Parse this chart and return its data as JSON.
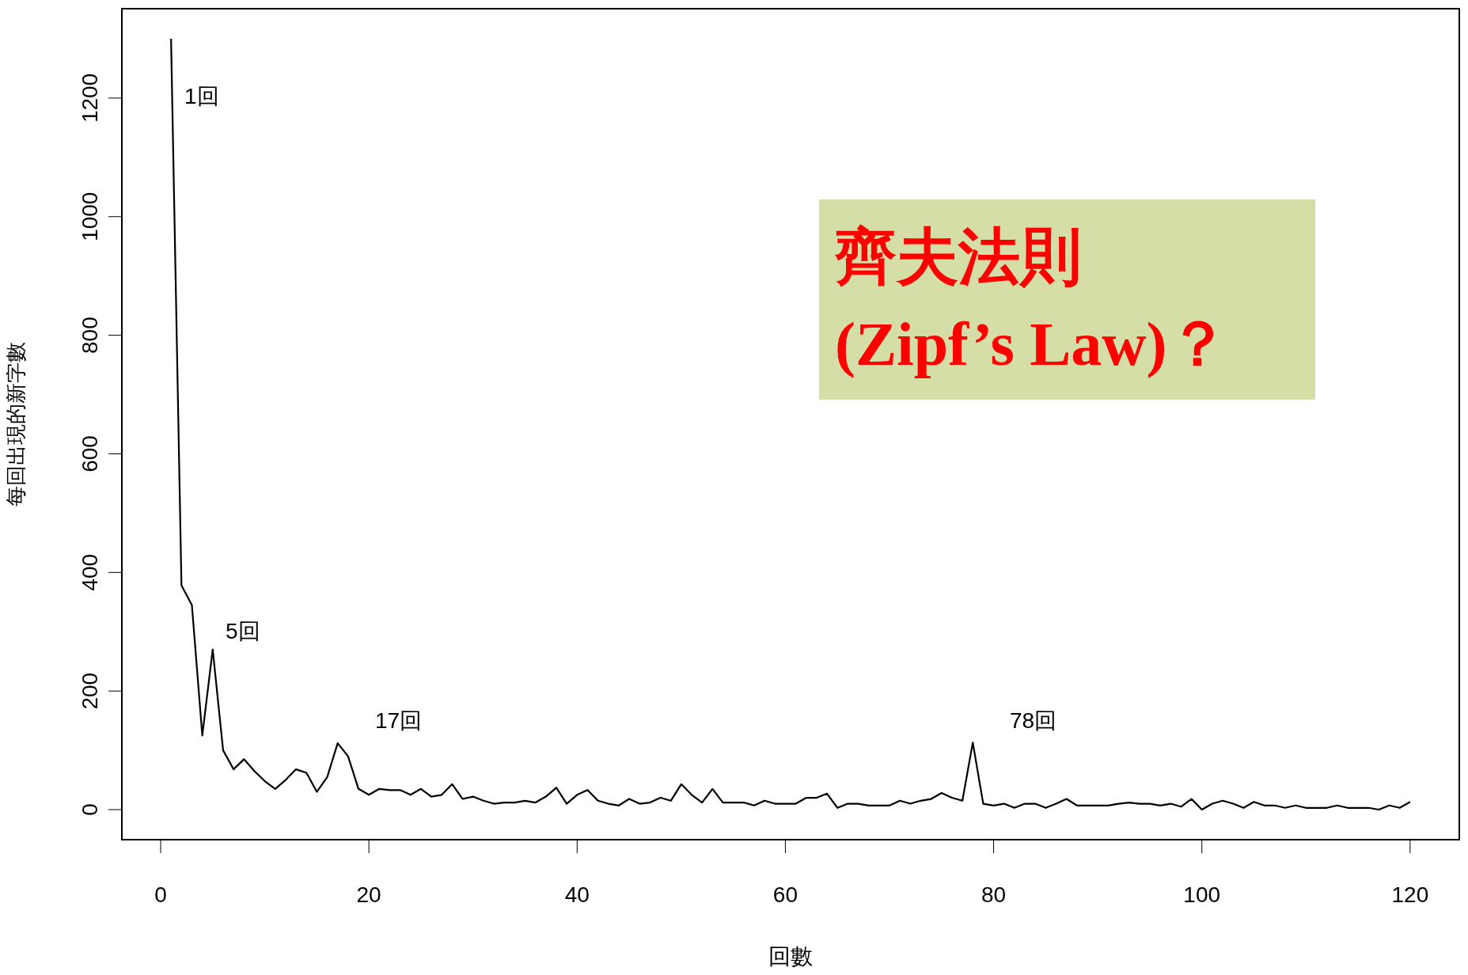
{
  "chart_data": {
    "type": "line",
    "xlabel": "回數",
    "ylabel": "每回出現的新字數",
    "x": [
      1,
      2,
      3,
      4,
      5,
      6,
      7,
      8,
      9,
      10,
      11,
      12,
      13,
      14,
      15,
      16,
      17,
      18,
      19,
      20,
      21,
      22,
      23,
      24,
      25,
      26,
      27,
      28,
      29,
      30,
      31,
      32,
      33,
      34,
      35,
      36,
      37,
      38,
      39,
      40,
      41,
      42,
      43,
      44,
      45,
      46,
      47,
      48,
      49,
      50,
      51,
      52,
      53,
      54,
      55,
      56,
      57,
      58,
      59,
      60,
      61,
      62,
      63,
      64,
      65,
      66,
      67,
      68,
      69,
      70,
      71,
      72,
      73,
      74,
      75,
      76,
      77,
      78,
      79,
      80,
      81,
      82,
      83,
      84,
      85,
      86,
      87,
      88,
      89,
      90,
      91,
      92,
      93,
      94,
      95,
      96,
      97,
      98,
      99,
      100,
      101,
      102,
      103,
      104,
      105,
      106,
      107,
      108,
      109,
      110,
      111,
      112,
      113,
      114,
      115,
      116,
      117,
      118,
      119,
      120
    ],
    "series": [
      {
        "color": "#000000",
        "values": [
          1300,
          378,
          345,
          125,
          270,
          100,
          68,
          85,
          65,
          48,
          35,
          50,
          68,
          62,
          30,
          55,
          112,
          90,
          35,
          25,
          35,
          33,
          33,
          25,
          35,
          22,
          25,
          43,
          18,
          22,
          15,
          10,
          12,
          12,
          15,
          12,
          22,
          37,
          10,
          25,
          33,
          15,
          10,
          7,
          18,
          10,
          12,
          20,
          15,
          43,
          25,
          12,
          35,
          12,
          12,
          12,
          7,
          15,
          10,
          10,
          10,
          20,
          20,
          27,
          3,
          10,
          10,
          7,
          7,
          7,
          15,
          10,
          15,
          18,
          28,
          20,
          15,
          113,
          10,
          7,
          10,
          3,
          10,
          10,
          3,
          10,
          18,
          7,
          7,
          7,
          7,
          10,
          12,
          10,
          10,
          7,
          10,
          5,
          18,
          0,
          10,
          15,
          10,
          3,
          13,
          7,
          7,
          3,
          7,
          3,
          3,
          3,
          7,
          3,
          3,
          3,
          0,
          7,
          3,
          13
        ]
      }
    ],
    "xlim": [
      -3.8,
      124.8
    ],
    "ylim": [
      -52,
      1352
    ],
    "xticks": [
      0,
      20,
      40,
      60,
      80,
      100,
      120
    ],
    "yticks": [
      0,
      200,
      400,
      600,
      800,
      1000,
      1200
    ],
    "annotations": [
      "1回",
      "5回",
      "17回",
      "78回",
      "齊夫法則",
      "(Zipf’s Law)？"
    ],
    "grid": false,
    "marker": "none",
    "line_style": "solid"
  }
}
